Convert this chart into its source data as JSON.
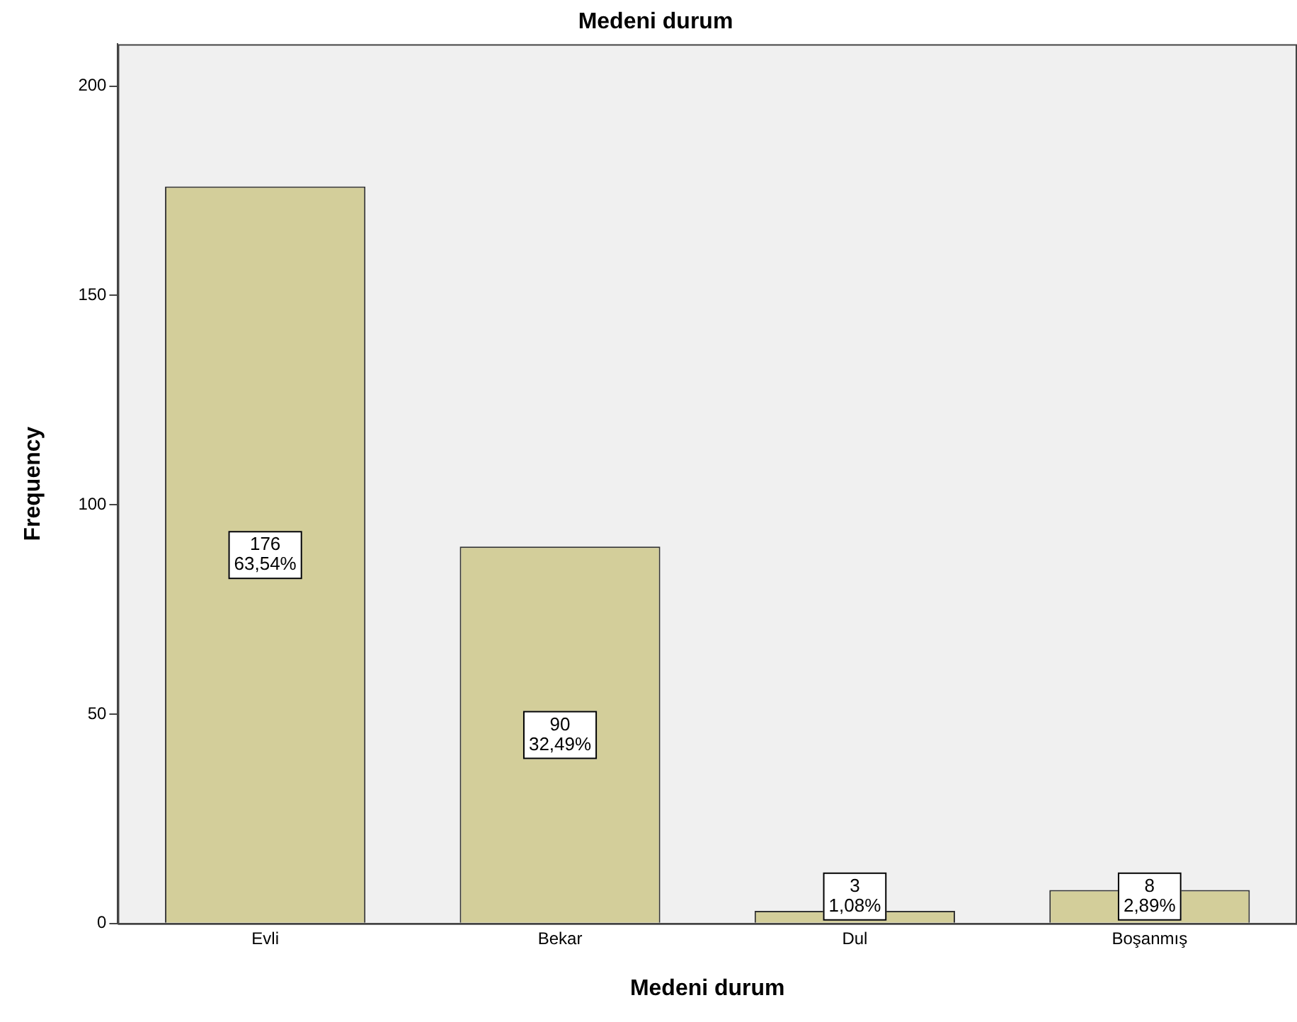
{
  "chart_data": {
    "type": "bar",
    "title": "Medeni durum",
    "xlabel": "Medeni durum",
    "ylabel": "Frequency",
    "categories": [
      "Evli",
      "Bekar",
      "Dul",
      "Boşanmış"
    ],
    "values": [
      176,
      90,
      3,
      8
    ],
    "value_labels": [
      "176\n63,54%",
      "90\n32,49%",
      "3\n1,08%",
      "8\n2,89%"
    ],
    "color": "#d3ce9a",
    "ylim": [
      0,
      210
    ],
    "yticks": [
      0,
      50,
      100,
      150,
      200
    ],
    "grid": false,
    "legend": false
  }
}
